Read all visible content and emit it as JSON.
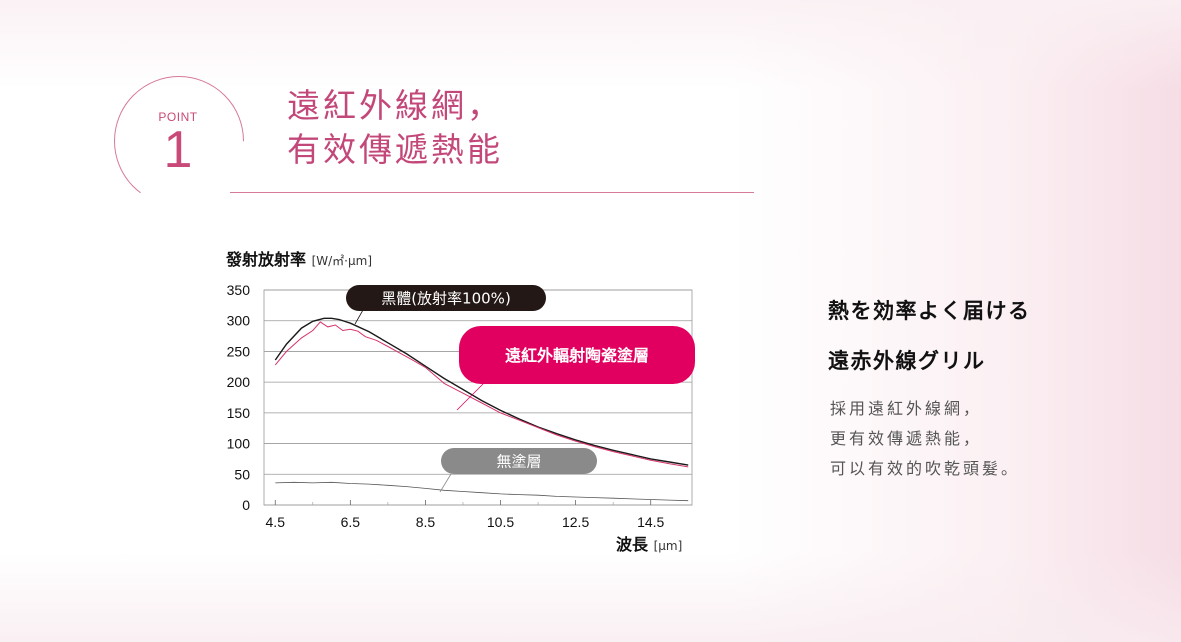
{
  "point": {
    "label": "POINT",
    "number": "1"
  },
  "title": {
    "line1": "遠紅外線網，",
    "line2": "有效傳遞熱能"
  },
  "chart_data": {
    "type": "line",
    "ylabel": "發射放射率",
    "ylabel_unit": "[W/㎡·μm]",
    "xlabel": "波長",
    "xlabel_unit": "[μm]",
    "xlim": [
      4.2,
      15.6
    ],
    "ylim": [
      0,
      350
    ],
    "x_ticks": [
      "4.5",
      "6.5",
      "8.5",
      "10.5",
      "12.5",
      "14.5"
    ],
    "y_ticks": [
      "350",
      "300",
      "250",
      "200",
      "150",
      "100",
      "50",
      "0"
    ],
    "grid": true,
    "series": [
      {
        "name": "黑體(放射率100%)",
        "color": "#1a1a1a",
        "x": [
          4.5,
          4.8,
          5.2,
          5.5,
          5.8,
          6.0,
          6.2,
          6.5,
          7.0,
          7.5,
          8.0,
          8.5,
          9.0,
          9.5,
          10.0,
          10.5,
          11.0,
          11.5,
          12.0,
          12.5,
          13.0,
          13.5,
          14.0,
          14.5,
          15.0,
          15.5
        ],
        "y": [
          236,
          262,
          288,
          299,
          304,
          304,
          302,
          296,
          282,
          264,
          246,
          226,
          206,
          188,
          170,
          154,
          140,
          127,
          116,
          106,
          97,
          89,
          82,
          75,
          70,
          65
        ]
      },
      {
        "name": "遠紅外輻射陶瓷塗層",
        "color": "#d6336c",
        "x": [
          4.5,
          4.8,
          5.2,
          5.5,
          5.7,
          5.9,
          6.1,
          6.3,
          6.5,
          6.7,
          6.9,
          7.2,
          7.5,
          7.8,
          8.1,
          8.5,
          9.0,
          9.5,
          10.0,
          10.5,
          11.0,
          11.5,
          12.0,
          12.5,
          13.0,
          13.5,
          14.0,
          14.5,
          15.0,
          15.5
        ],
        "y": [
          228,
          250,
          272,
          284,
          298,
          290,
          293,
          284,
          286,
          283,
          274,
          268,
          258,
          248,
          238,
          224,
          198,
          182,
          166,
          150,
          138,
          126,
          114,
          104,
          95,
          87,
          80,
          73,
          67,
          62
        ]
      },
      {
        "name": "無塗層",
        "color": "#555555",
        "x": [
          4.5,
          5.0,
          5.5,
          6.0,
          6.5,
          7.0,
          7.5,
          8.0,
          8.5,
          9.0,
          9.5,
          10.0,
          10.5,
          11.0,
          11.5,
          12.0,
          12.5,
          13.0,
          13.5,
          14.0,
          14.5,
          15.0,
          15.5
        ],
        "y": [
          36,
          37,
          36,
          37,
          35,
          34,
          32,
          30,
          27,
          24,
          22,
          20,
          18,
          17,
          16,
          14,
          13,
          12,
          11,
          10,
          9,
          8,
          7
        ]
      }
    ],
    "labels": [
      {
        "text": "黑體(放射率100%)",
        "style": "dark"
      },
      {
        "text": "遠紅外輻射陶瓷塗層",
        "style": "pink"
      },
      {
        "text": "無塗層",
        "style": "gray"
      }
    ]
  },
  "side": {
    "heading1": "熱を効率よく届ける",
    "heading2": "遠赤外線グリル",
    "body": [
      "採用遠紅外線網，",
      "更有效傳遞熱能，",
      "可以有效的吹乾頭髮。"
    ]
  }
}
